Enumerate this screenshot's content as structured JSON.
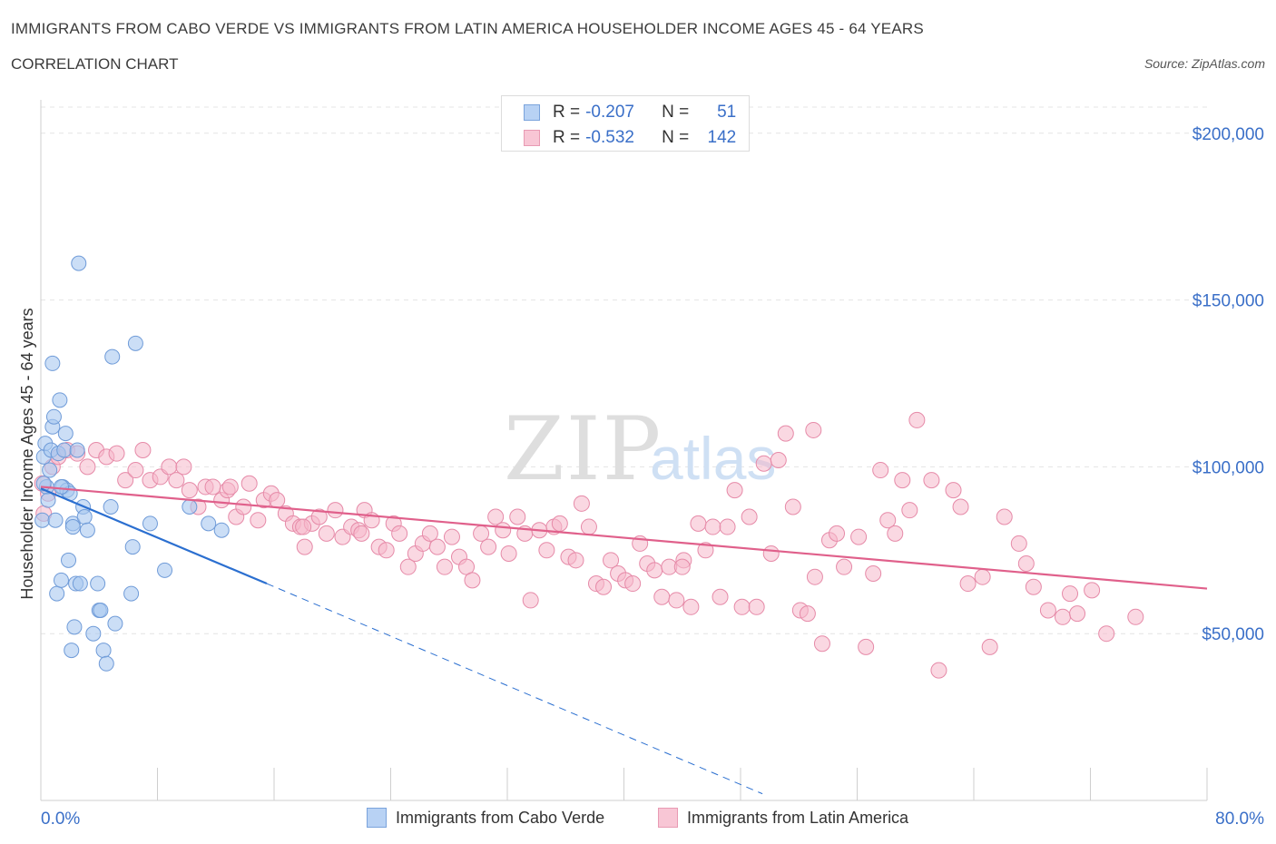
{
  "header": {
    "title": "IMMIGRANTS FROM CABO VERDE VS IMMIGRANTS FROM LATIN AMERICA HOUSEHOLDER INCOME AGES 45 - 64 YEARS",
    "subtitle": "CORRELATION CHART",
    "source": "Source: ZipAtlas.com"
  },
  "watermark": "ZIPatlas",
  "legend": {
    "rows": [
      {
        "r_label": "R =",
        "r_value": "-0.207",
        "n_label": "N =",
        "n_value": "51"
      },
      {
        "r_label": "R =",
        "r_value": "-0.532",
        "n_label": "N =",
        "n_value": "142"
      }
    ]
  },
  "bottom_legend": [
    {
      "label": "Immigrants from Cabo Verde"
    },
    {
      "label": "Immigrants from Latin America"
    }
  ],
  "colors": {
    "blue_fill": "#a9c8f0",
    "blue_stroke": "#6f9bd8",
    "blue_line": "#2b6fd0",
    "pink_fill": "#f6b8cb",
    "pink_stroke": "#e68aa8",
    "pink_line": "#e0608b",
    "value_text": "#3a6fc8",
    "grid": "#e4e4e4"
  },
  "chart_data": {
    "type": "scatter",
    "title": "IMMIGRANTS FROM CABO VERDE VS IMMIGRANTS FROM LATIN AMERICA HOUSEHOLDER INCOME AGES 45 - 64 YEARS",
    "xlabel": "",
    "ylabel": "Householder Income Ages 45 - 64 years",
    "xlim": [
      0,
      80
    ],
    "ylim": [
      0,
      210000
    ],
    "x_tick_labels": [
      "0.0%",
      "80.0%"
    ],
    "y_ticks": [
      50000,
      100000,
      150000,
      200000
    ],
    "y_tick_labels": [
      "$50,000",
      "$100,000",
      "$150,000",
      "$200,000"
    ],
    "grid": "horizontal-dashed",
    "series": [
      {
        "name": "Immigrants from Cabo Verde",
        "color": "#a9c8f0",
        "trend": {
          "x0": 0,
          "y0": 93500,
          "x1": 15.5,
          "y1": 65000,
          "dash_to_x": 49.5,
          "dash_to_y": 2000
        },
        "points": [
          [
            0.1,
            84000
          ],
          [
            0.2,
            103000
          ],
          [
            0.3,
            107000
          ],
          [
            0.4,
            94000
          ],
          [
            0.5,
            90000
          ],
          [
            0.6,
            99000
          ],
          [
            0.7,
            105000
          ],
          [
            0.8,
            112000
          ],
          [
            0.8,
            131000
          ],
          [
            0.9,
            115000
          ],
          [
            1.0,
            84000
          ],
          [
            1.1,
            62000
          ],
          [
            1.2,
            104000
          ],
          [
            1.3,
            120000
          ],
          [
            1.4,
            66000
          ],
          [
            1.5,
            94000
          ],
          [
            1.6,
            105000
          ],
          [
            1.7,
            110000
          ],
          [
            1.8,
            93000
          ],
          [
            1.9,
            72000
          ],
          [
            2.0,
            92000
          ],
          [
            2.1,
            45000
          ],
          [
            2.2,
            83000
          ],
          [
            2.3,
            52000
          ],
          [
            2.4,
            65000
          ],
          [
            2.5,
            105000
          ],
          [
            2.6,
            161000
          ],
          [
            2.7,
            65000
          ],
          [
            2.9,
            88000
          ],
          [
            3.0,
            85000
          ],
          [
            3.2,
            81000
          ],
          [
            3.6,
            50000
          ],
          [
            3.9,
            65000
          ],
          [
            4.0,
            57000
          ],
          [
            4.1,
            57000
          ],
          [
            4.3,
            45000
          ],
          [
            4.5,
            41000
          ],
          [
            4.8,
            88000
          ],
          [
            4.9,
            133000
          ],
          [
            5.1,
            53000
          ],
          [
            6.2,
            62000
          ],
          [
            6.3,
            76000
          ],
          [
            6.5,
            137000
          ],
          [
            7.5,
            83000
          ],
          [
            8.5,
            69000
          ],
          [
            10.2,
            88000
          ],
          [
            11.5,
            83000
          ],
          [
            12.4,
            81000
          ],
          [
            0.2,
            95000
          ],
          [
            1.4,
            94000
          ],
          [
            2.2,
            82000
          ]
        ]
      },
      {
        "name": "Immigrants from Latin America",
        "color": "#f6b8cb",
        "trend": {
          "x0": 0,
          "y0": 94000,
          "x1": 80,
          "y1": 63500
        },
        "points": [
          [
            0.2,
            86000
          ],
          [
            0.5,
            92000
          ],
          [
            0.8,
            100000
          ],
          [
            1.2,
            103000
          ],
          [
            1.8,
            105000
          ],
          [
            2.5,
            104000
          ],
          [
            3.2,
            100000
          ],
          [
            3.8,
            105000
          ],
          [
            4.5,
            103000
          ],
          [
            5.2,
            104000
          ],
          [
            5.8,
            96000
          ],
          [
            6.5,
            99000
          ],
          [
            7.0,
            105000
          ],
          [
            7.5,
            96000
          ],
          [
            8.2,
            97000
          ],
          [
            8.8,
            100000
          ],
          [
            9.3,
            96000
          ],
          [
            9.8,
            100000
          ],
          [
            10.2,
            93000
          ],
          [
            10.8,
            88000
          ],
          [
            11.3,
            94000
          ],
          [
            11.8,
            94000
          ],
          [
            12.4,
            90000
          ],
          [
            12.8,
            93000
          ],
          [
            13.4,
            85000
          ],
          [
            13.9,
            88000
          ],
          [
            14.3,
            95000
          ],
          [
            14.9,
            84000
          ],
          [
            15.3,
            90000
          ],
          [
            15.8,
            92000
          ],
          [
            16.2,
            90000
          ],
          [
            16.8,
            86000
          ],
          [
            17.3,
            83000
          ],
          [
            17.8,
            82000
          ],
          [
            18.1,
            76000
          ],
          [
            18.6,
            83000
          ],
          [
            19.1,
            85000
          ],
          [
            19.6,
            80000
          ],
          [
            20.2,
            87000
          ],
          [
            20.7,
            79000
          ],
          [
            21.3,
            82000
          ],
          [
            21.8,
            81000
          ],
          [
            22.2,
            87000
          ],
          [
            22.7,
            84000
          ],
          [
            23.2,
            76000
          ],
          [
            23.7,
            75000
          ],
          [
            24.2,
            83000
          ],
          [
            24.6,
            80000
          ],
          [
            25.2,
            70000
          ],
          [
            25.7,
            74000
          ],
          [
            26.2,
            77000
          ],
          [
            26.7,
            80000
          ],
          [
            27.2,
            76000
          ],
          [
            27.7,
            70000
          ],
          [
            28.2,
            79000
          ],
          [
            28.7,
            73000
          ],
          [
            29.2,
            70000
          ],
          [
            29.6,
            66000
          ],
          [
            30.2,
            80000
          ],
          [
            30.7,
            76000
          ],
          [
            31.2,
            85000
          ],
          [
            31.7,
            81000
          ],
          [
            32.1,
            74000
          ],
          [
            32.7,
            85000
          ],
          [
            33.2,
            80000
          ],
          [
            33.6,
            60000
          ],
          [
            34.2,
            81000
          ],
          [
            34.7,
            75000
          ],
          [
            35.2,
            82000
          ],
          [
            35.6,
            83000
          ],
          [
            36.2,
            73000
          ],
          [
            36.7,
            72000
          ],
          [
            37.1,
            89000
          ],
          [
            37.6,
            82000
          ],
          [
            38.1,
            65000
          ],
          [
            38.6,
            64000
          ],
          [
            39.1,
            72000
          ],
          [
            39.6,
            68000
          ],
          [
            40.1,
            66000
          ],
          [
            40.6,
            65000
          ],
          [
            41.1,
            77000
          ],
          [
            41.6,
            71000
          ],
          [
            42.1,
            69000
          ],
          [
            42.6,
            61000
          ],
          [
            43.1,
            70000
          ],
          [
            43.6,
            60000
          ],
          [
            44.1,
            72000
          ],
          [
            44.6,
            58000
          ],
          [
            45.1,
            83000
          ],
          [
            45.6,
            75000
          ],
          [
            46.1,
            82000
          ],
          [
            46.6,
            61000
          ],
          [
            47.1,
            82000
          ],
          [
            47.6,
            93000
          ],
          [
            48.1,
            58000
          ],
          [
            48.6,
            85000
          ],
          [
            49.1,
            58000
          ],
          [
            49.6,
            101000
          ],
          [
            50.1,
            74000
          ],
          [
            50.6,
            102000
          ],
          [
            51.1,
            110000
          ],
          [
            51.6,
            88000
          ],
          [
            52.1,
            57000
          ],
          [
            52.6,
            56000
          ],
          [
            53.1,
            67000
          ],
          [
            53.6,
            47000
          ],
          [
            54.1,
            78000
          ],
          [
            54.6,
            80000
          ],
          [
            55.1,
            70000
          ],
          [
            56.1,
            79000
          ],
          [
            56.6,
            46000
          ],
          [
            57.1,
            68000
          ],
          [
            57.6,
            99000
          ],
          [
            58.1,
            84000
          ],
          [
            58.6,
            80000
          ],
          [
            59.1,
            96000
          ],
          [
            59.6,
            87000
          ],
          [
            60.1,
            114000
          ],
          [
            61.1,
            96000
          ],
          [
            61.6,
            39000
          ],
          [
            62.6,
            93000
          ],
          [
            63.1,
            88000
          ],
          [
            63.6,
            65000
          ],
          [
            64.6,
            67000
          ],
          [
            65.1,
            46000
          ],
          [
            66.1,
            85000
          ],
          [
            67.1,
            77000
          ],
          [
            67.6,
            71000
          ],
          [
            68.1,
            64000
          ],
          [
            69.1,
            57000
          ],
          [
            70.1,
            55000
          ],
          [
            70.6,
            62000
          ],
          [
            71.1,
            56000
          ],
          [
            72.1,
            63000
          ],
          [
            73.1,
            50000
          ],
          [
            75.1,
            55000
          ],
          [
            13.0,
            94000
          ],
          [
            18.0,
            82000
          ],
          [
            22.0,
            80000
          ],
          [
            44.0,
            70000
          ],
          [
            53.0,
            111000
          ],
          [
            0.1,
            95000
          ]
        ]
      }
    ]
  }
}
